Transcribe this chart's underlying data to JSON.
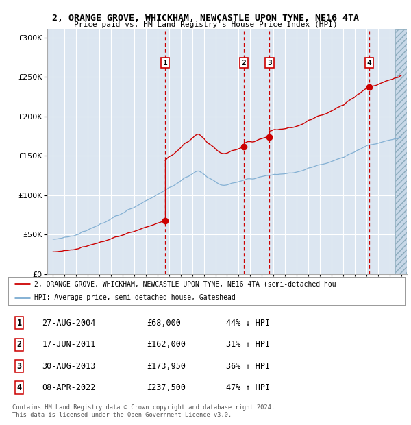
{
  "title": "2, ORANGE GROVE, WHICKHAM, NEWCASTLE UPON TYNE, NE16 4TA",
  "subtitle": "Price paid vs. HM Land Registry's House Price Index (HPI)",
  "background_color": "#dce6f1",
  "grid_color": "#ffffff",
  "xmin": 1994.5,
  "xmax": 2025.5,
  "ymin": 0,
  "ymax": 310000,
  "yticks": [
    0,
    50000,
    100000,
    150000,
    200000,
    250000,
    300000
  ],
  "sale_dates": [
    2004.65,
    2011.46,
    2013.66,
    2022.27
  ],
  "sale_prices": [
    68000,
    162000,
    173950,
    237500
  ],
  "sale_labels": [
    "1",
    "2",
    "3",
    "4"
  ],
  "sale_pct": [
    "44% ↓ HPI",
    "31% ↑ HPI",
    "36% ↑ HPI",
    "47% ↑ HPI"
  ],
  "sale_price_strs": [
    "£68,000",
    "£162,000",
    "£173,950",
    "£237,500"
  ],
  "sale_date_labels": [
    "27-AUG-2004",
    "17-JUN-2011",
    "30-AUG-2013",
    "08-APR-2022"
  ],
  "legend_line1": "2, ORANGE GROVE, WHICKHAM, NEWCASTLE UPON TYNE, NE16 4TA (semi-detached hou",
  "legend_line2": "HPI: Average price, semi-detached house, Gateshead",
  "footer": "Contains HM Land Registry data © Crown copyright and database right 2024.\nThis data is licensed under the Open Government Licence v3.0.",
  "red_color": "#cc0000",
  "blue_color": "#7aaad0"
}
